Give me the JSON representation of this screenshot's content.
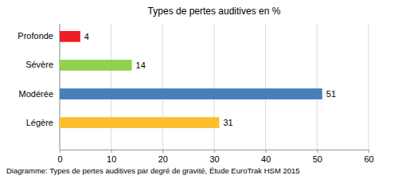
{
  "chart_data": {
    "type": "bar",
    "title": "Types de pertes auditives en %",
    "orientation": "horizontal",
    "categories": [
      "Profonde",
      "Sévère",
      "Modérée",
      "Légère"
    ],
    "values": [
      4,
      14,
      51,
      31
    ],
    "colors": [
      "#ee1c25",
      "#92d050",
      "#4a7ebb",
      "#fbbf2e"
    ],
    "xlim": [
      0,
      60
    ],
    "xticks": [
      0,
      10,
      20,
      30,
      40,
      50,
      60
    ],
    "grid": true,
    "data_labels": true,
    "annotations": [
      "Diagramme: Types de pertes auditives par degré de gravité, Étude EuroTrak HSM 2015"
    ]
  }
}
